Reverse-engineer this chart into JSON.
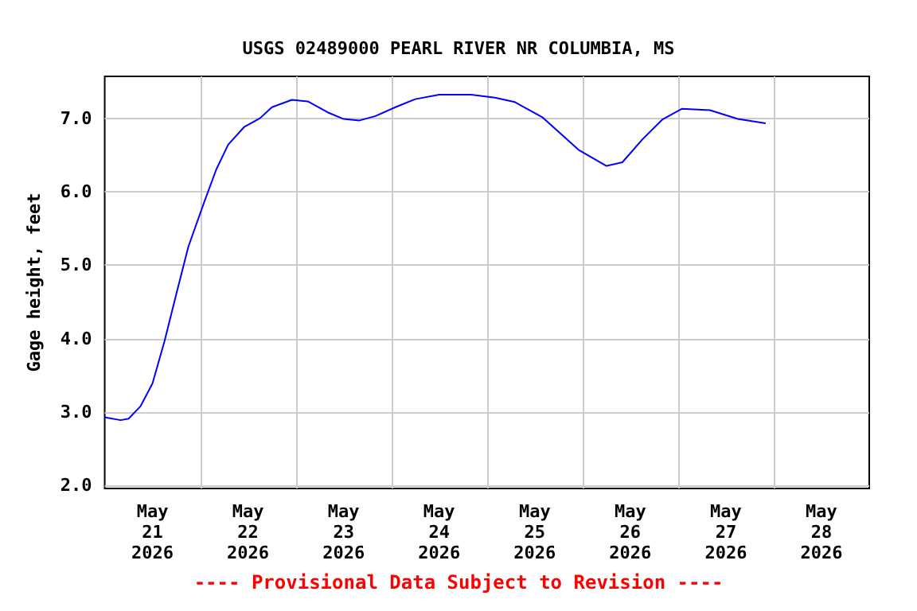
{
  "chart_data": {
    "type": "line",
    "title": "USGS 02489000 PEARL RIVER NR COLUMBIA, MS",
    "ylabel": "Gage height, feet",
    "annotations": [
      "---- Provisional Data Subject to Revision ----"
    ],
    "x": [
      "2026-05-21T00:00",
      "2026-05-21T04:00",
      "2026-05-21T06:00",
      "2026-05-21T09:00",
      "2026-05-21T12:00",
      "2026-05-21T15:00",
      "2026-05-21T18:00",
      "2026-05-21T21:00",
      "2026-05-22T01:00",
      "2026-05-22T04:00",
      "2026-05-22T07:00",
      "2026-05-22T11:00",
      "2026-05-22T15:00",
      "2026-05-22T18:00",
      "2026-05-22T23:00",
      "2026-05-23T03:00",
      "2026-05-23T08:00",
      "2026-05-23T12:00",
      "2026-05-23T16:00",
      "2026-05-23T20:00",
      "2026-05-24T01:00",
      "2026-05-24T06:00",
      "2026-05-24T12:00",
      "2026-05-24T20:00",
      "2026-05-25T02:00",
      "2026-05-25T07:00",
      "2026-05-25T14:00",
      "2026-05-25T23:00",
      "2026-05-26T06:00",
      "2026-05-26T10:00",
      "2026-05-26T15:00",
      "2026-05-26T20:00",
      "2026-05-27T01:00",
      "2026-05-27T08:00",
      "2026-05-27T15:00",
      "2026-05-27T22:00"
    ],
    "series": [
      {
        "color": "#0000ff",
        "values": [
          2.93,
          2.89,
          2.91,
          3.08,
          3.39,
          3.96,
          4.61,
          5.25,
          5.86,
          6.3,
          6.64,
          6.88,
          7.0,
          7.15,
          7.25,
          7.23,
          7.08,
          6.99,
          6.97,
          7.03,
          7.15,
          7.26,
          7.32,
          7.32,
          7.28,
          7.22,
          7.01,
          6.57,
          6.35,
          6.4,
          6.71,
          6.98,
          7.13,
          7.11,
          6.99,
          6.93
        ]
      }
    ],
    "xlim": [
      "2026-05-21T00:00",
      "2026-05-29T00:00"
    ],
    "xticks": [
      {
        "value": "2026-05-21T12:00",
        "label": "May\n21\n2026"
      },
      {
        "value": "2026-05-22T12:00",
        "label": "May\n22\n2026"
      },
      {
        "value": "2026-05-23T12:00",
        "label": "May\n23\n2026"
      },
      {
        "value": "2026-05-24T12:00",
        "label": "May\n24\n2026"
      },
      {
        "value": "2026-05-25T12:00",
        "label": "May\n25\n2026"
      },
      {
        "value": "2026-05-26T12:00",
        "label": "May\n26\n2026"
      },
      {
        "value": "2026-05-27T12:00",
        "label": "May\n27\n2026"
      },
      {
        "value": "2026-05-28T12:00",
        "label": "May\n28\n2026"
      },
      {
        "value": "2026-05-22T00:00",
        "label": null
      },
      {
        "value": "2026-05-23T00:00",
        "label": null
      },
      {
        "value": "2026-05-24T00:00",
        "label": null
      },
      {
        "value": "2026-05-25T00:00",
        "label": null
      },
      {
        "value": "2026-05-26T00:00",
        "label": null
      },
      {
        "value": "2026-05-27T00:00",
        "label": null
      },
      {
        "value": "2026-05-28T00:00",
        "label": null
      }
    ],
    "ylim": [
      1.96,
      7.57
    ],
    "yticks": [
      {
        "value": 2,
        "label": "2.0"
      },
      {
        "value": 3,
        "label": "3.0"
      },
      {
        "value": 4,
        "label": "4.0"
      },
      {
        "value": 5,
        "label": "5.0"
      },
      {
        "value": 6,
        "label": "6.0"
      },
      {
        "value": 7,
        "label": "7.0"
      }
    ],
    "grid": true,
    "marker": "none",
    "line_style": "solid"
  }
}
